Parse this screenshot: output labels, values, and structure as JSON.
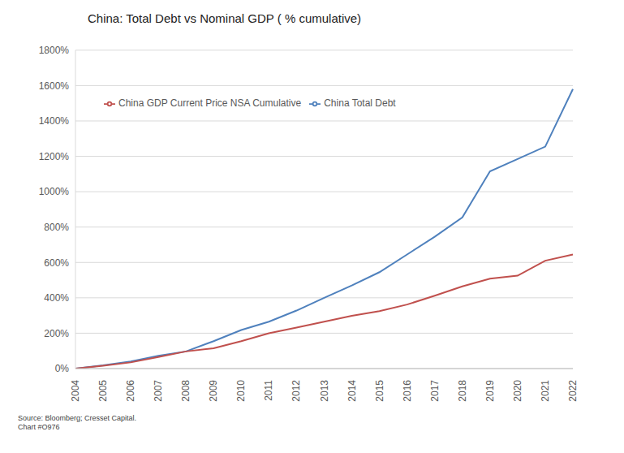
{
  "chart_data": {
    "type": "line",
    "title": "China: Total Debt vs Nominal GDP ( % cumulative)",
    "categories": [
      "2004",
      "2005",
      "2006",
      "2007",
      "2008",
      "2009",
      "2010",
      "2011",
      "2012",
      "2013",
      "2014",
      "2015",
      "2016",
      "2017",
      "2018",
      "2019",
      "2020",
      "2021",
      "2022"
    ],
    "series": [
      {
        "name": "China Total Debt",
        "color": "#4f81bd",
        "values": [
          0,
          18,
          40,
          72,
          97,
          155,
          218,
          265,
          328,
          400,
          470,
          545,
          645,
          745,
          855,
          1115,
          1185,
          1255,
          1580
        ]
      },
      {
        "name": "China GDP Current Price NSA Cumulative",
        "color": "#c0504d",
        "values": [
          0,
          16,
          35,
          65,
          97,
          115,
          155,
          200,
          232,
          265,
          298,
          325,
          362,
          412,
          465,
          508,
          525,
          610,
          645
        ]
      }
    ],
    "ylim": [
      0,
      1800
    ],
    "yticks": [
      {
        "value": 0,
        "label": "0%"
      },
      {
        "value": 200,
        "label": "200%"
      },
      {
        "value": 400,
        "label": "400%"
      },
      {
        "value": 600,
        "label": "600%"
      },
      {
        "value": 800,
        "label": "800%"
      },
      {
        "value": 1000,
        "label": "1000%"
      },
      {
        "value": 1200,
        "label": "1200%"
      },
      {
        "value": 1400,
        "label": "1400%"
      },
      {
        "value": 1600,
        "label": "1600%"
      },
      {
        "value": 1800,
        "label": "1800%"
      }
    ],
    "grid": true,
    "legend": "upper left",
    "annotations": [
      "Source: Bloomberg; Cresset Capital.",
      "Chart #O976"
    ]
  }
}
